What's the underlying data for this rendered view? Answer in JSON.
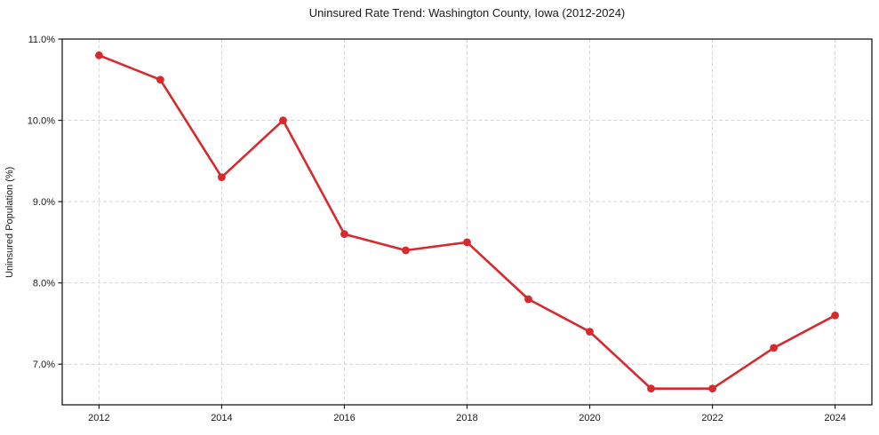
{
  "chart_data": {
    "type": "line",
    "title": "Uninsured Rate Trend: Washington County, Iowa (2012-2024)",
    "xlabel": "",
    "ylabel": "Uninsured Population (%)",
    "x": [
      2012,
      2013,
      2014,
      2015,
      2016,
      2017,
      2018,
      2019,
      2020,
      2021,
      2022,
      2023,
      2024
    ],
    "values": [
      10.8,
      10.5,
      9.3,
      10.0,
      8.6,
      8.4,
      8.5,
      7.8,
      7.4,
      6.7,
      6.7,
      7.2,
      7.6
    ],
    "xlim": [
      2011.4,
      2024.6
    ],
    "ylim": [
      6.5,
      11.0
    ],
    "x_tick_values": [
      2012,
      2014,
      2016,
      2018,
      2020,
      2022,
      2024
    ],
    "x_tick_labels": [
      "2012",
      "2014",
      "2016",
      "2018",
      "2020",
      "2022",
      "2024"
    ],
    "y_tick_values": [
      7.0,
      8.0,
      9.0,
      10.0,
      11.0
    ],
    "y_tick_labels": [
      "7.0%",
      "8.0%",
      "9.0%",
      "10.0%",
      "11.0%"
    ],
    "grid": true,
    "grid_style": "dashed",
    "legend_position": "none",
    "marker": "circle",
    "colors": {
      "line": "#d62a2e",
      "grid": "#d6d6d6",
      "spine": "#1a1a1a",
      "text": "#1a1a1a",
      "background": "#ffffff"
    }
  }
}
